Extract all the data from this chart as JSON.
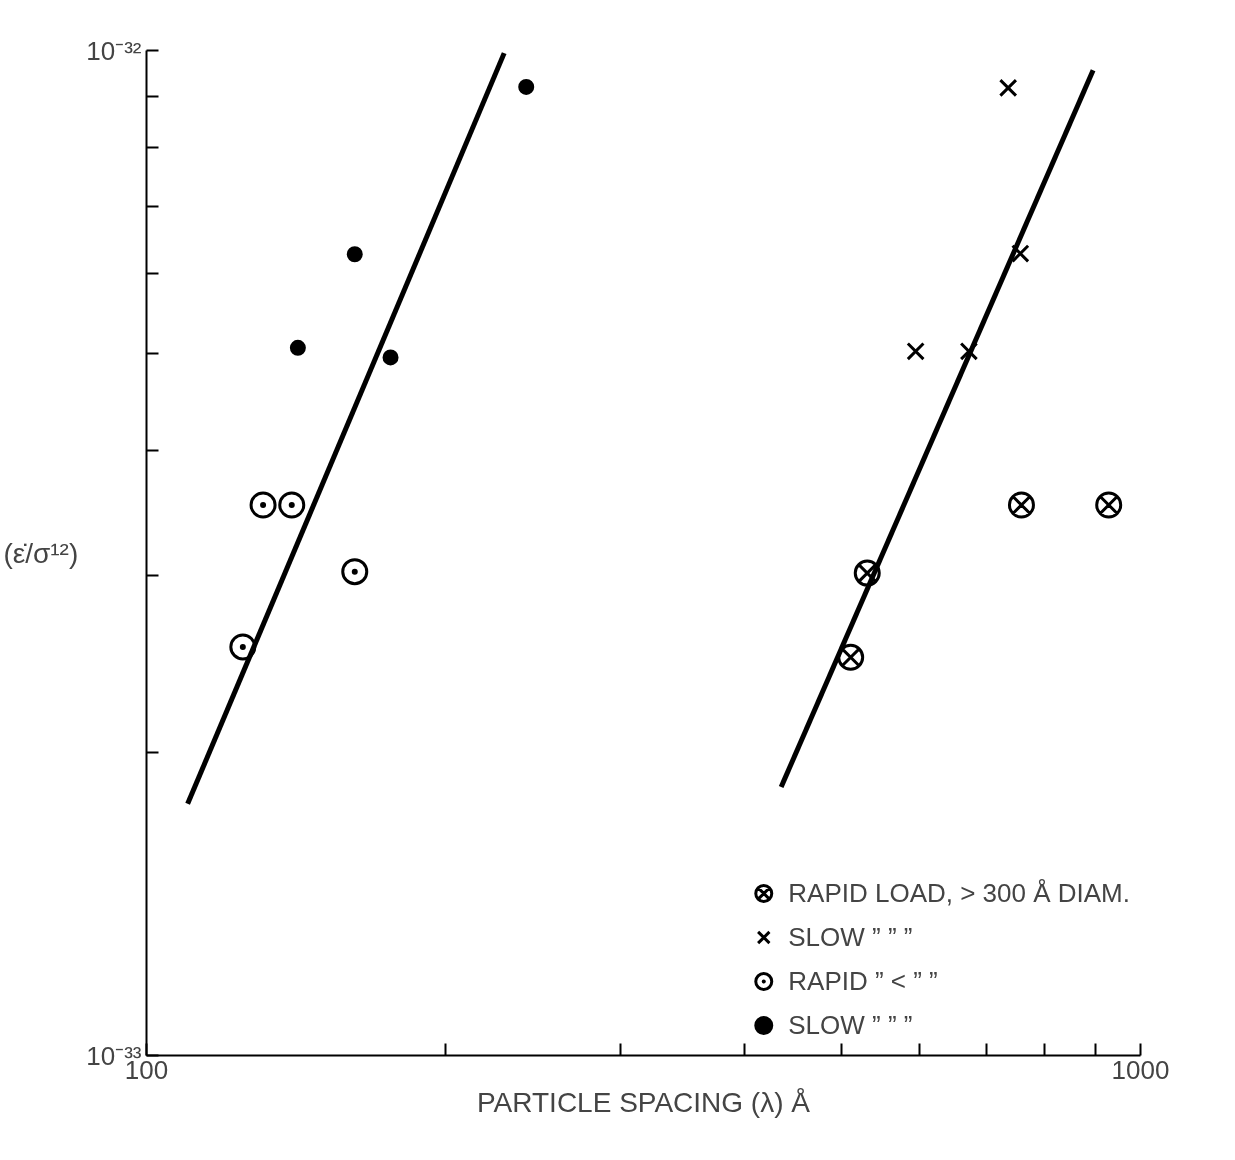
{
  "chart_data": {
    "type": "scatter",
    "xlabel": "PARTICLE SPACING (λ) Å",
    "ylabel": "(ε̇/σ¹²)",
    "log": "xy",
    "grid": false,
    "legend": "bottom right",
    "xlim": [
      100,
      1000
    ],
    "ylim": [
      1e-33,
      1e-32
    ],
    "xticks": [
      {
        "value": 100,
        "label": "100"
      },
      {
        "value": 200,
        "label": null
      },
      {
        "value": 300,
        "label": null
      },
      {
        "value": 400,
        "label": null
      },
      {
        "value": 500,
        "label": null
      },
      {
        "value": 600,
        "label": null
      },
      {
        "value": 700,
        "label": null
      },
      {
        "value": 800,
        "label": null
      },
      {
        "value": 900,
        "label": null
      },
      {
        "value": 1000,
        "label": "1000"
      }
    ],
    "yticks": [
      {
        "value": 1e-33,
        "label": "10⁻³³"
      },
      {
        "value": 2e-33,
        "label": null
      },
      {
        "value": 3e-33,
        "label": null
      },
      {
        "value": 4e-33,
        "label": null
      },
      {
        "value": 5e-33,
        "label": null
      },
      {
        "value": 6e-33,
        "label": null
      },
      {
        "value": 7e-33,
        "label": null
      },
      {
        "value": 8e-33,
        "label": null
      },
      {
        "value": 9e-33,
        "label": null
      },
      {
        "value": 1e-32,
        "label": "10⁻³²"
      }
    ],
    "series": [
      {
        "name": "RAPID LOAD, > 300 Å DIAM.",
        "color": "#000000",
        "marker": "circle_x",
        "x": [
          511,
          531,
          759,
          929
        ],
        "values": [
          2.49e-33,
          3.02e-33,
          3.53e-33,
          3.53e-33
        ]
      },
      {
        "name": "SLOW ” ” ”",
        "color": "#000000",
        "marker": "x",
        "x": [
          594,
          672,
          757,
          736
        ],
        "values": [
          5.02e-33,
          5.02e-33,
          6.28e-33,
          9.18e-33
        ]
      },
      {
        "name": "RAPID ” < ” ”",
        "color": "#000000",
        "marker": "circle_dot",
        "x": [
          125,
          131,
          140,
          162
        ],
        "values": [
          2.55e-33,
          3.53e-33,
          3.53e-33,
          3.03e-33
        ]
      },
      {
        "name": "SLOW ” ” ”",
        "color": "#000000",
        "marker": "circle",
        "x": [
          142,
          162,
          176,
          241
        ],
        "values": [
          5.06e-33,
          6.27e-33,
          4.95e-33,
          9.2e-33
        ]
      },
      {
        "type": "line",
        "color": "#000000",
        "x": [
          110,
          229
        ],
        "values": [
          1.78e-33,
          9.94e-33
        ]
      },
      {
        "type": "line",
        "color": "#000000",
        "x": [
          435,
          896
        ],
        "values": [
          1.85e-33,
          9.56e-33
        ]
      }
    ]
  }
}
